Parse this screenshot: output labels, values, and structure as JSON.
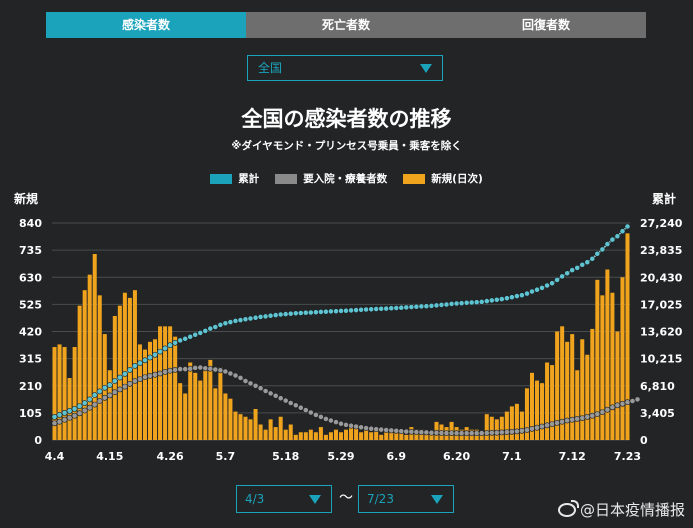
{
  "tabs": [
    {
      "label": "感染者数",
      "active": true
    },
    {
      "label": "死亡者数",
      "active": false
    },
    {
      "label": "回復者数",
      "active": false
    }
  ],
  "region_select": {
    "value": "全国"
  },
  "date_range": {
    "from": "4/3",
    "to": "7/23",
    "separator": "〜"
  },
  "watermark": "@日本疫情播报",
  "colors": {
    "accent": "#1aa3bb",
    "bars": "#f0a31c",
    "cumulative_line": "#5fc4d1",
    "hospitalized_line": "#9a9a9a",
    "background": "#222426",
    "tab_inactive": "#6e6e6e"
  },
  "chart_data": {
    "type": "bar",
    "title": "全国の感染者数の推移",
    "subtitle": "※ダイヤモンド・プリンセス号乗員・乗客を除く",
    "left_axis_title": "新規",
    "right_axis_title": "累計",
    "left_ticks": [
      "840",
      "735",
      "630",
      "525",
      "420",
      "315",
      "210",
      "105",
      "0"
    ],
    "right_ticks": [
      "27,240",
      "23,835",
      "20,430",
      "17,025",
      "13,620",
      "10,215",
      "6,810",
      "3,405",
      "0"
    ],
    "x_tick_labels": [
      "4.4",
      "4.15",
      "4.26",
      "5.7",
      "5.18",
      "5.29",
      "6.9",
      "6.20",
      "7.1",
      "7.12",
      "7.23"
    ],
    "ylim_left": [
      0,
      840
    ],
    "ylim_right": [
      0,
      27240
    ],
    "grid": true,
    "legend_position": "top-center",
    "x_start": "4/3",
    "x_end": "7/23",
    "series": [
      {
        "name": "新規(日次)",
        "type": "bar",
        "axis": "left",
        "values": [
          360,
          370,
          360,
          240,
          360,
          520,
          580,
          640,
          720,
          560,
          410,
          270,
          480,
          520,
          570,
          550,
          580,
          370,
          350,
          380,
          390,
          440,
          440,
          440,
          400,
          220,
          180,
          300,
          260,
          230,
          280,
          310,
          200,
          280,
          180,
          160,
          110,
          100,
          90,
          80,
          120,
          60,
          40,
          80,
          50,
          90,
          40,
          60,
          20,
          30,
          30,
          40,
          30,
          50,
          20,
          30,
          40,
          30,
          40,
          50,
          50,
          30,
          40,
          30,
          40,
          20,
          30,
          40,
          30,
          40,
          20,
          50,
          40,
          40,
          30,
          30,
          70,
          60,
          50,
          70,
          50,
          40,
          50,
          40,
          40,
          30,
          100,
          90,
          80,
          90,
          110,
          130,
          140,
          110,
          200,
          260,
          230,
          220,
          300,
          290,
          420,
          440,
          380,
          410,
          270,
          390,
          330,
          430,
          620,
          560,
          660,
          570,
          420,
          630,
          800
        ]
      },
      {
        "name": "累計",
        "type": "line",
        "axis": "right",
        "values": [
          2900,
          3150,
          3400,
          3650,
          3900,
          4250,
          4650,
          5100,
          5650,
          6100,
          6550,
          6900,
          7400,
          7850,
          8300,
          8800,
          9300,
          9650,
          10000,
          10350,
          10700,
          11100,
          11500,
          11900,
          12200,
          12500,
          12700,
          12950,
          13200,
          13450,
          13700,
          13980,
          14180,
          14450,
          14650,
          14800,
          14950,
          15050,
          15150,
          15250,
          15350,
          15450,
          15520,
          15600,
          15680,
          15750,
          15800,
          15860,
          15900,
          15940,
          15980,
          16010,
          16040,
          16080,
          16110,
          16140,
          16170,
          16200,
          16230,
          16270,
          16310,
          16340,
          16380,
          16410,
          16440,
          16470,
          16500,
          16540,
          16570,
          16610,
          16640,
          16690,
          16730,
          16770,
          16800,
          16830,
          16900,
          16960,
          17010,
          17080,
          17130,
          17170,
          17220,
          17260,
          17300,
          17330,
          17430,
          17520,
          17600,
          17690,
          17800,
          17930,
          18070,
          18180,
          18380,
          18640,
          18870,
          19090,
          19390,
          19680,
          20100,
          20540,
          20920,
          21330,
          21600,
          21990,
          22320,
          22750,
          23370,
          23930,
          24590,
          25160,
          25580,
          26210,
          26800
        ]
      },
      {
        "name": "要入院・療養者数",
        "type": "line",
        "axis": "right",
        "values": [
          2100,
          2300,
          2550,
          2800,
          3050,
          3350,
          3700,
          4050,
          4450,
          4900,
          5300,
          5600,
          6000,
          6350,
          6700,
          7050,
          7400,
          7650,
          7900,
          8050,
          8200,
          8350,
          8550,
          8700,
          8800,
          8900,
          8900,
          8950,
          9050,
          9100,
          9000,
          8950,
          8850,
          8750,
          8600,
          8350,
          8100,
          7800,
          7400,
          7100,
          6800,
          6500,
          6150,
          5850,
          5550,
          5250,
          4950,
          4650,
          4350,
          4050,
          3750,
          3450,
          3150,
          2900,
          2650,
          2450,
          2250,
          2050,
          1900,
          1800,
          1700,
          1600,
          1500,
          1420,
          1350,
          1300,
          1250,
          1200,
          1150,
          1100,
          1060,
          1030,
          1000,
          980,
          950,
          920,
          900,
          880,
          870,
          860,
          850,
          850,
          850,
          850,
          850,
          860,
          880,
          900,
          920,
          950,
          990,
          1030,
          1080,
          1150,
          1250,
          1400,
          1550,
          1700,
          1850,
          2000,
          2150,
          2300,
          2450,
          2550,
          2650,
          2750,
          2900,
          3050,
          3250,
          3500,
          3800,
          4100,
          4350,
          4550,
          4750,
          4900,
          5100
        ]
      }
    ]
  }
}
